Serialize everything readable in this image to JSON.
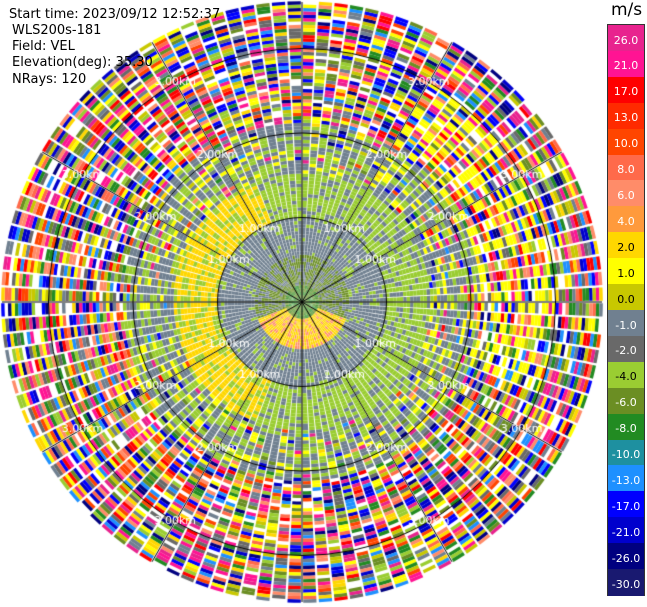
{
  "header": {
    "start_time": "Start time: 2023/09/12 12:52:37",
    "instrument": "WLS200s-181",
    "field": "Field: VEL",
    "elevation": "Elevation(deg): 35.30",
    "nrays": "NRays: 120"
  },
  "colorbar": {
    "units": "m/s",
    "ticks": [
      "26.0",
      "21.0",
      "17.0",
      "13.0",
      "10.0",
      "8.0",
      "6.0",
      "4.0",
      "2.0",
      "1.0",
      "0.0",
      "-1.0",
      "-2.0",
      "-4.0",
      "-6.0",
      "-8.0",
      "-10.0",
      "-13.0",
      "-17.0",
      "-21.0",
      "-26.0",
      "-30.0"
    ],
    "colors": [
      "#e8238e",
      "#ff1493",
      "#ff0000",
      "#ff2a00",
      "#ff4500",
      "#ff6a4a",
      "#ff8c69",
      "#ff9a3c",
      "#ffd700",
      "#ffff00",
      "#c8c800",
      "#708090",
      "#696969",
      "#9acd32",
      "#6b8e23",
      "#228b22",
      "#1e90a0",
      "#1e90ff",
      "#0000ff",
      "#0000cd",
      "#000080",
      "#191970"
    ]
  },
  "chart_data": {
    "type": "polar-ppi",
    "field": "VEL",
    "units": "m/s",
    "rays": 120,
    "range_rings_km": [
      1.0,
      2.0,
      3.0
    ],
    "ring_labels": [
      "1.00km",
      "2.00km",
      "3.00km"
    ],
    "spoke_angles_deg": [
      0,
      30,
      60,
      90,
      120,
      150,
      180,
      210,
      240,
      270,
      300,
      330
    ],
    "zones": [
      {
        "range_km": [
          0.0,
          0.2
        ],
        "value": 0.0,
        "note": "near-zero velocity at center"
      },
      {
        "range_km": [
          0.2,
          0.6
        ],
        "value": -2.0,
        "note": "olive/green inner ring"
      },
      {
        "range_km": [
          0.6,
          1.0
        ],
        "value": 0.0,
        "note": "gray ring"
      },
      {
        "range_km": [
          1.0,
          1.6
        ],
        "value": -2.0,
        "note": "yellow-green ring"
      },
      {
        "range_km": [
          1.6,
          2.3
        ],
        "value": "noise",
        "note": "mixed noisy velocities"
      },
      {
        "range_km": [
          2.3,
          3.6
        ],
        "value": "noise",
        "note": "random multi-colored noise"
      }
    ]
  }
}
